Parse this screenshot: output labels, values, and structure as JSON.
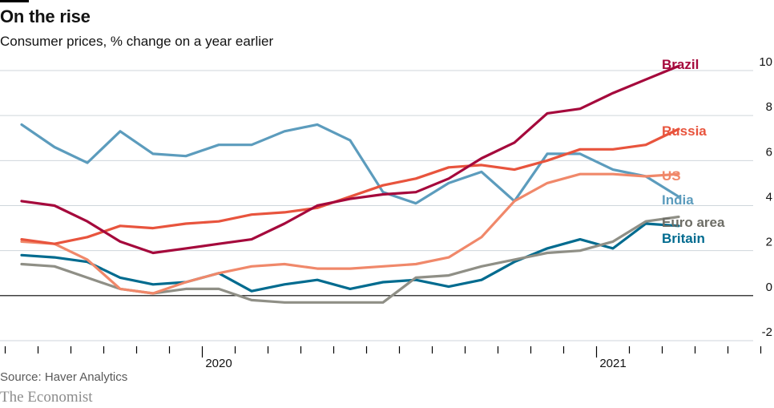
{
  "header": {
    "title": "On the rise",
    "subtitle": "Consumer prices, % change on a year earlier"
  },
  "footer": {
    "source": "Source: Haver Analytics",
    "brand": "The Economist"
  },
  "chart_data": {
    "type": "line",
    "title": "On the rise",
    "subtitle": "Consumer prices, % change on a year earlier",
    "x_months": [
      "2019-07",
      "2019-08",
      "2019-09",
      "2019-10",
      "2019-11",
      "2019-12",
      "2020-01",
      "2020-02",
      "2020-03",
      "2020-04",
      "2020-05",
      "2020-06",
      "2020-07",
      "2020-08",
      "2020-09",
      "2020-10",
      "2020-11",
      "2020-12",
      "2021-01",
      "2021-02",
      "2021-03",
      "2021-04",
      "2021-05"
    ],
    "x_tick_labels": [
      {
        "month": "2020-01",
        "label": "2020"
      },
      {
        "month": "2021-01",
        "label": "2021"
      }
    ],
    "x_axis_range": [
      "2019-06",
      "2021-08"
    ],
    "ylim": [
      -2,
      10
    ],
    "yticks": [
      10,
      8,
      6,
      4,
      2,
      0,
      -2
    ],
    "grid": true,
    "legend_placement": "direct labels at right end of lines",
    "series": [
      {
        "name": "Brazil",
        "color": "#a5093c",
        "values": [
          4.2,
          4.0,
          3.3,
          2.4,
          1.9,
          2.1,
          2.3,
          2.5,
          3.2,
          4.0,
          4.3,
          4.5,
          4.6,
          5.2,
          6.1,
          6.8,
          8.1,
          8.3,
          9.0,
          9.6,
          10.2,
          null,
          null
        ]
      },
      {
        "name": "Russia",
        "color": "#e8543d",
        "values": [
          2.5,
          2.3,
          2.6,
          3.1,
          3.0,
          3.2,
          3.3,
          3.6,
          3.7,
          3.9,
          4.4,
          4.9,
          5.2,
          5.7,
          5.8,
          5.6,
          6.0,
          6.5,
          6.5,
          6.7,
          7.4,
          null,
          null
        ]
      },
      {
        "name": "US",
        "color": "#f0886a",
        "values": [
          2.4,
          2.3,
          1.6,
          0.3,
          0.1,
          0.6,
          1.0,
          1.3,
          1.4,
          1.2,
          1.2,
          1.3,
          1.4,
          1.7,
          2.6,
          4.2,
          5.0,
          5.4,
          5.4,
          5.3,
          5.4,
          null,
          null
        ]
      },
      {
        "name": "India",
        "color": "#5c9cbd",
        "values": [
          7.6,
          6.6,
          5.9,
          7.3,
          6.3,
          6.2,
          6.7,
          6.7,
          7.3,
          7.6,
          6.9,
          4.6,
          4.1,
          5.0,
          5.5,
          4.2,
          6.3,
          6.3,
          5.6,
          5.3,
          4.4,
          null,
          null
        ]
      },
      {
        "name": "Euro area",
        "color": "#8f8f86",
        "values": [
          1.4,
          1.3,
          0.8,
          0.3,
          0.1,
          0.3,
          0.3,
          -0.2,
          -0.3,
          -0.3,
          -0.3,
          -0.3,
          0.8,
          0.9,
          1.3,
          1.6,
          1.9,
          2.0,
          2.4,
          3.3,
          3.5,
          null,
          null
        ]
      },
      {
        "name": "Britain",
        "color": "#006b8f",
        "values": [
          1.8,
          1.7,
          1.5,
          0.8,
          0.5,
          0.6,
          1.0,
          0.2,
          0.5,
          0.7,
          0.3,
          0.6,
          0.7,
          0.4,
          0.7,
          1.5,
          2.1,
          2.5,
          2.1,
          3.2,
          3.1,
          null,
          null
        ]
      }
    ]
  }
}
